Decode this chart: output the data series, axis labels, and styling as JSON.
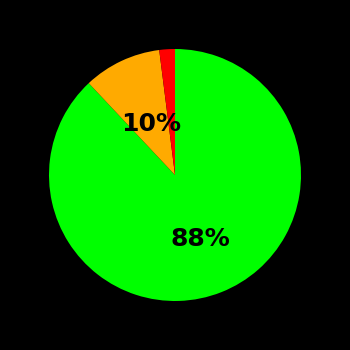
{
  "slices": [
    88,
    10,
    2
  ],
  "colors": [
    "#00ff00",
    "#ffaa00",
    "#ff0000"
  ],
  "labels": [
    "88%",
    "10%",
    ""
  ],
  "background_color": "#000000",
  "text_color": "#000000",
  "startangle": 90,
  "label_fontsize": 18,
  "label_fontweight": "bold",
  "label_radii": [
    0.55,
    0.45,
    0
  ],
  "figsize": [
    3.5,
    3.5
  ],
  "dpi": 100
}
